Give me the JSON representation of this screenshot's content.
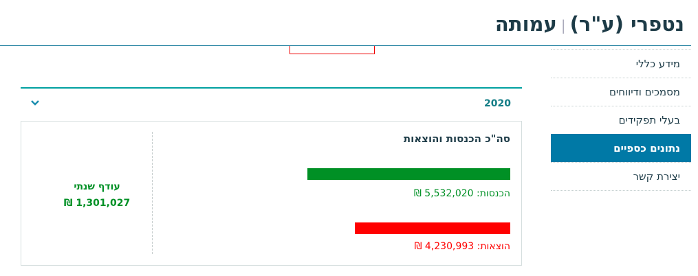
{
  "header": {
    "org_name": "נטפרי (ע\"ר)",
    "separator": "|",
    "org_type": "עמותה"
  },
  "sidebar": {
    "items": [
      {
        "label": "מידע כללי",
        "active": false
      },
      {
        "label": "מסמכים ודיווחים",
        "active": false
      },
      {
        "label": "בעלי תפקידים",
        "active": false
      },
      {
        "label": "נתונים כספיים",
        "active": true
      },
      {
        "label": "יצירת קשר",
        "active": false
      }
    ]
  },
  "panel": {
    "year": "2020",
    "expand_icon": "chevron-down-icon",
    "title": "סה\"כ הכנסות והוצאות",
    "income": {
      "label": "הכנסות: 5,532,020 ₪",
      "value": 5532020,
      "color": "#009025"
    },
    "expenses": {
      "label": "הוצאות: 4,230,993 ₪",
      "value": 4230993,
      "color": "#ff0000"
    },
    "surplus": {
      "label": "עודף שנתי",
      "amount": "1,301,027 ₪",
      "color": "#009025"
    }
  },
  "colors": {
    "accent": "#0079a6",
    "teal": "#00a0a0"
  }
}
